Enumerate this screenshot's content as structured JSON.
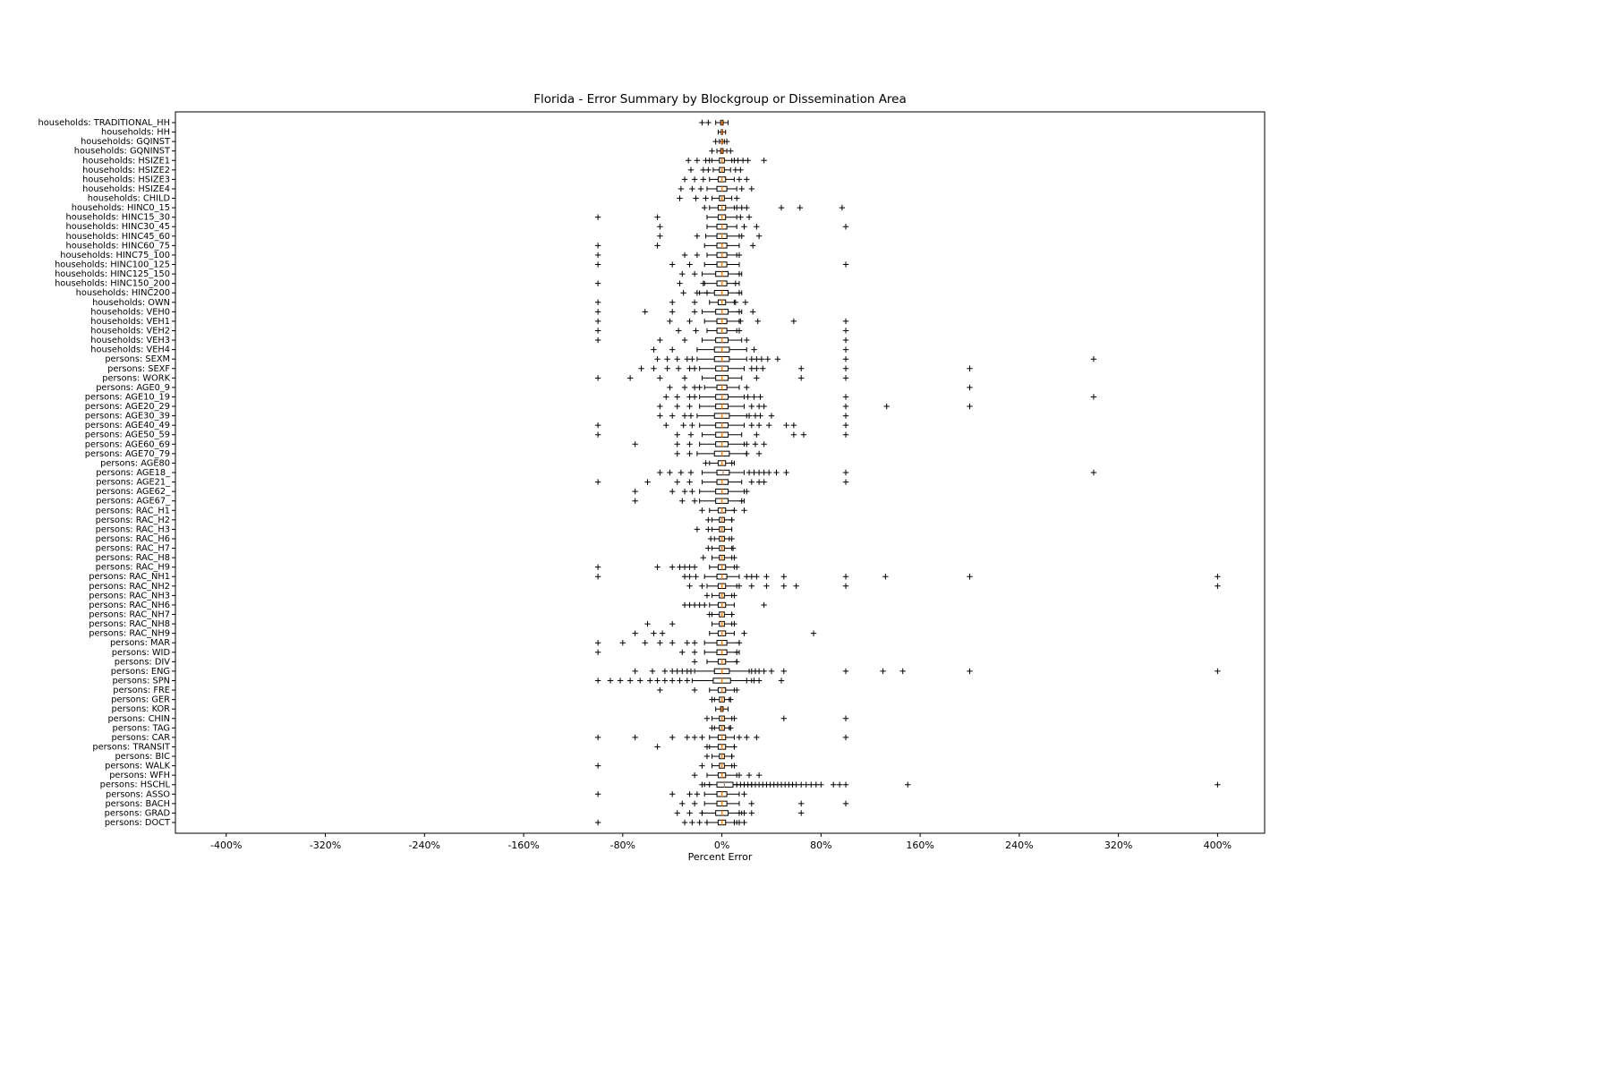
{
  "chart_data": {
    "type": "boxplot",
    "orientation": "horizontal",
    "title": "Florida - Error Summary by Blockgroup or Dissemination Area",
    "xlabel": "Percent Error",
    "xlim": [
      -441,
      438
    ],
    "xticks": [
      -400,
      -320,
      -240,
      -160,
      -80,
      0,
      80,
      160,
      240,
      320,
      400
    ],
    "xtick_labels": [
      "-400%",
      "-320%",
      "-240%",
      "-160%",
      "-80%",
      "0%",
      "80%",
      "160%",
      "240%",
      "320%",
      "400%"
    ],
    "grid": false,
    "legend": null,
    "box_color": "#000000",
    "median_color": "#ff7f0e",
    "marker": "+",
    "rows": [
      {
        "label": "households: TRADITIONAL_HH",
        "lo": -5,
        "q1": -1,
        "med": 0,
        "q3": 1,
        "hi": 5,
        "out": [
          -16,
          -11
        ]
      },
      {
        "label": "households: HH",
        "lo": -3,
        "q1": -0.5,
        "med": 0,
        "q3": 0.5,
        "hi": 3,
        "out": []
      },
      {
        "label": "households: GQINST",
        "lo": -2,
        "q1": -0.3,
        "med": 0,
        "q3": 0.3,
        "hi": 2,
        "out": [
          -5,
          4
        ]
      },
      {
        "label": "households: GQNINST",
        "lo": -4,
        "q1": -1,
        "med": 0,
        "q3": 1,
        "hi": 4,
        "out": [
          -8,
          7
        ]
      },
      {
        "label": "households: HSIZE1",
        "lo": -8,
        "q1": -2,
        "med": 0,
        "q3": 2,
        "hi": 8,
        "out": [
          -27,
          -20,
          -13,
          -10,
          10,
          13,
          17,
          21,
          34
        ]
      },
      {
        "label": "households: HSIZE2",
        "lo": -7,
        "q1": -2,
        "med": 0,
        "q3": 2,
        "hi": 7,
        "out": [
          -25,
          -15,
          -11,
          11,
          15
        ]
      },
      {
        "label": "households: HSIZE3",
        "lo": -10,
        "q1": -3,
        "med": 0,
        "q3": 3,
        "hi": 10,
        "out": [
          -30,
          -22,
          -15,
          14,
          20
        ]
      },
      {
        "label": "households: HSIZE4",
        "lo": -12,
        "q1": -4,
        "med": 0,
        "q3": 4,
        "hi": 12,
        "out": [
          -33,
          -24,
          -17,
          16,
          24
        ]
      },
      {
        "label": "households: CHILD",
        "lo": -8,
        "q1": -2,
        "med": 0,
        "q3": 2,
        "hi": 8,
        "out": [
          -34,
          -21,
          -13,
          12
        ]
      },
      {
        "label": "households: HINC0_15",
        "lo": -10,
        "q1": -3,
        "med": 0,
        "q3": 3,
        "hi": 10,
        "out": [
          -14,
          12,
          16,
          20,
          48,
          63,
          97
        ]
      },
      {
        "label": "households: HINC15_30",
        "lo": -12,
        "q1": -3,
        "med": 0,
        "q3": 3,
        "hi": 12,
        "out": [
          -100,
          -52,
          15,
          22
        ]
      },
      {
        "label": "households: HINC30_45",
        "lo": -12,
        "q1": -4,
        "med": 0,
        "q3": 4,
        "hi": 12,
        "out": [
          -50,
          18,
          28,
          100
        ]
      },
      {
        "label": "households: HINC45_60",
        "lo": -13,
        "q1": -4,
        "med": 0,
        "q3": 4,
        "hi": 14,
        "out": [
          -50,
          -20,
          16,
          30
        ]
      },
      {
        "label": "households: HINC60_75",
        "lo": -14,
        "q1": -4,
        "med": 0,
        "q3": 4,
        "hi": 14,
        "out": [
          -100,
          -52,
          25
        ]
      },
      {
        "label": "households: HINC75_100",
        "lo": -12,
        "q1": -4,
        "med": 0,
        "q3": 4,
        "hi": 12,
        "out": [
          -100,
          -30,
          -20,
          14
        ]
      },
      {
        "label": "households: HINC100_125",
        "lo": -14,
        "q1": -4,
        "med": 0,
        "q3": 4,
        "hi": 14,
        "out": [
          -100,
          -40,
          -26,
          100
        ]
      },
      {
        "label": "households: HINC125_150",
        "lo": -16,
        "q1": -5,
        "med": 0,
        "q3": 5,
        "hi": 16,
        "out": [
          -32,
          -22,
          14
        ]
      },
      {
        "label": "households: HINC150_200",
        "lo": -14,
        "q1": -4,
        "med": 0,
        "q3": 4,
        "hi": 14,
        "out": [
          -100,
          -34,
          -15,
          11
        ]
      },
      {
        "label": "households: HINC200",
        "lo": -18,
        "q1": -6,
        "med": 0,
        "q3": 5,
        "hi": 16,
        "out": [
          -31,
          -20,
          -12,
          14
        ]
      },
      {
        "label": "households: OWN",
        "lo": -10,
        "q1": -3,
        "med": 0,
        "q3": 3,
        "hi": 10,
        "out": [
          -100,
          -40,
          -22,
          11,
          19
        ]
      },
      {
        "label": "households: VEH0",
        "lo": -16,
        "q1": -5,
        "med": 0,
        "q3": 5,
        "hi": 16,
        "out": [
          -100,
          -62,
          -40,
          -22,
          14,
          25
        ]
      },
      {
        "label": "households: VEH1",
        "lo": -14,
        "q1": -4,
        "med": 0,
        "q3": 4,
        "hi": 14,
        "out": [
          -100,
          -42,
          -26,
          15,
          29,
          58,
          100
        ]
      },
      {
        "label": "households: VEH2",
        "lo": -12,
        "q1": -4,
        "med": 0,
        "q3": 4,
        "hi": 12,
        "out": [
          -100,
          -35,
          -21,
          14,
          100
        ]
      },
      {
        "label": "households: VEH3",
        "lo": -16,
        "q1": -5,
        "med": 0,
        "q3": 5,
        "hi": 16,
        "out": [
          -100,
          -50,
          -30,
          20,
          100
        ]
      },
      {
        "label": "households: VEH4",
        "lo": -20,
        "q1": -6,
        "med": 0,
        "q3": 6,
        "hi": 20,
        "out": [
          -55,
          -40,
          26,
          100
        ]
      },
      {
        "label": "persons: SEXM",
        "lo": -20,
        "q1": -6,
        "med": 0,
        "q3": 6,
        "hi": 20,
        "out": [
          -52,
          -44,
          -36,
          -28,
          -24,
          24,
          28,
          32,
          37,
          45,
          100,
          300
        ]
      },
      {
        "label": "persons: SEXF",
        "lo": -18,
        "q1": -5,
        "med": 0,
        "q3": 5,
        "hi": 18,
        "out": [
          -65,
          -55,
          -44,
          -35,
          -26,
          -22,
          24,
          28,
          33,
          64,
          100,
          200
        ]
      },
      {
        "label": "persons: WORK",
        "lo": -16,
        "q1": -5,
        "med": 0,
        "q3": 5,
        "hi": 16,
        "out": [
          -100,
          -74,
          -50,
          -30,
          28,
          64,
          100
        ]
      },
      {
        "label": "persons: AGE0_9",
        "lo": -14,
        "q1": -4,
        "med": 0,
        "q3": 4,
        "hi": 14,
        "out": [
          -42,
          -30,
          -22,
          -18,
          20,
          200
        ]
      },
      {
        "label": "persons: AGE10_19",
        "lo": -18,
        "q1": -5,
        "med": 0,
        "q3": 5,
        "hi": 18,
        "out": [
          -45,
          -36,
          -26,
          -22,
          21,
          26,
          31,
          100,
          300
        ]
      },
      {
        "label": "persons: AGE20_29",
        "lo": -18,
        "q1": -5,
        "med": 0,
        "q3": 5,
        "hi": 18,
        "out": [
          -50,
          -36,
          -26,
          24,
          30,
          34,
          100,
          133,
          200
        ]
      },
      {
        "label": "persons: AGE30_39",
        "lo": -20,
        "q1": -6,
        "med": 0,
        "q3": 6,
        "hi": 20,
        "out": [
          -50,
          -40,
          -30,
          -25,
          22,
          27,
          31,
          40,
          100
        ]
      },
      {
        "label": "persons: AGE40_49",
        "lo": -18,
        "q1": -5,
        "med": 0,
        "q3": 5,
        "hi": 18,
        "out": [
          -100,
          -45,
          -31,
          -24,
          24,
          30,
          38,
          52,
          58,
          100
        ]
      },
      {
        "label": "persons: AGE50_59",
        "lo": -16,
        "q1": -5,
        "med": 0,
        "q3": 5,
        "hi": 16,
        "out": [
          -100,
          -36,
          -25,
          28,
          58,
          66,
          100
        ]
      },
      {
        "label": "persons: AGE60_69",
        "lo": -18,
        "q1": -5,
        "med": 0,
        "q3": 5,
        "hi": 18,
        "out": [
          -70,
          -36,
          -26,
          20,
          27,
          34
        ]
      },
      {
        "label": "persons: AGE70_79",
        "lo": -20,
        "q1": -6,
        "med": 0,
        "q3": 6,
        "hi": 20,
        "out": [
          -36,
          -26,
          20,
          30
        ]
      },
      {
        "label": "persons: AGE80",
        "lo": -10,
        "q1": -3,
        "med": 0,
        "q3": 3,
        "hi": 10,
        "out": [
          -13,
          8
        ]
      },
      {
        "label": "persons: AGE18_",
        "lo": -16,
        "q1": -4,
        "med": 1,
        "q3": 6,
        "hi": 18,
        "out": [
          -50,
          -42,
          -33,
          -25,
          22,
          26,
          30,
          34,
          38,
          44,
          52,
          100,
          300
        ]
      },
      {
        "label": "persons: AGE21_",
        "lo": -16,
        "q1": -4,
        "med": 0,
        "q3": 5,
        "hi": 16,
        "out": [
          -100,
          -60,
          -36,
          -26,
          24,
          30,
          34,
          100
        ]
      },
      {
        "label": "persons: AGE62_",
        "lo": -18,
        "q1": -5,
        "med": 0,
        "q3": 5,
        "hi": 18,
        "out": [
          -70,
          -40,
          -30,
          -24,
          20
        ]
      },
      {
        "label": "persons: AGE67_",
        "lo": -18,
        "q1": -5,
        "med": 0,
        "q3": 5,
        "hi": 18,
        "out": [
          -70,
          -32,
          -22,
          16
        ]
      },
      {
        "label": "persons: RAC_H1",
        "lo": -10,
        "q1": -3,
        "med": 0,
        "q3": 3,
        "hi": 10,
        "out": [
          -16,
          10,
          18
        ]
      },
      {
        "label": "persons: RAC_H2",
        "lo": -8,
        "q1": -2,
        "med": 0,
        "q3": 2,
        "hi": 8,
        "out": [
          -11,
          8
        ]
      },
      {
        "label": "persons: RAC_H3",
        "lo": -8,
        "q1": -2,
        "med": 0,
        "q3": 2,
        "hi": 8,
        "out": [
          -20,
          -11
        ]
      },
      {
        "label": "persons: RAC_H6",
        "lo": -6,
        "q1": -2,
        "med": 0,
        "q3": 2,
        "hi": 6,
        "out": [
          -9,
          8
        ]
      },
      {
        "label": "persons: RAC_H7",
        "lo": -8,
        "q1": -2,
        "med": 0,
        "q3": 2,
        "hi": 8,
        "out": [
          -11,
          9
        ]
      },
      {
        "label": "persons: RAC_H8",
        "lo": -8,
        "q1": -2,
        "med": 0,
        "q3": 2,
        "hi": 8,
        "out": [
          -15,
          10
        ]
      },
      {
        "label": "persons: RAC_H9",
        "lo": -10,
        "q1": -3,
        "med": 0,
        "q3": 3,
        "hi": 10,
        "out": [
          -100,
          -52,
          -40,
          -34,
          -30,
          -26,
          -22,
          12
        ]
      },
      {
        "label": "persons: RAC_NH1",
        "lo": -14,
        "q1": -4,
        "med": 0,
        "q3": 4,
        "hi": 14,
        "out": [
          -100,
          -30,
          -26,
          -21,
          20,
          24,
          28,
          36,
          50,
          100,
          132,
          200,
          400
        ]
      },
      {
        "label": "persons: RAC_NH2",
        "lo": -12,
        "q1": -3,
        "med": 0,
        "q3": 3,
        "hi": 12,
        "out": [
          -26,
          -16,
          14,
          24,
          36,
          50,
          60,
          100,
          400
        ]
      },
      {
        "label": "persons: RAC_NH3",
        "lo": -8,
        "q1": -2,
        "med": 0,
        "q3": 2,
        "hi": 8,
        "out": [
          -12,
          10
        ]
      },
      {
        "label": "persons: RAC_NH6",
        "lo": -10,
        "q1": -3,
        "med": 0,
        "q3": 3,
        "hi": 10,
        "out": [
          -30,
          -26,
          -22,
          -18,
          -14,
          34
        ]
      },
      {
        "label": "persons: RAC_NH7",
        "lo": -8,
        "q1": -2,
        "med": 0,
        "q3": 2,
        "hi": 8,
        "out": [
          -10,
          8
        ]
      },
      {
        "label": "persons: RAC_NH8",
        "lo": -8,
        "q1": -2,
        "med": 0,
        "q3": 2,
        "hi": 8,
        "out": [
          -60,
          -40,
          10
        ]
      },
      {
        "label": "persons: RAC_NH9",
        "lo": -10,
        "q1": -3,
        "med": 0,
        "q3": 3,
        "hi": 10,
        "out": [
          -70,
          -55,
          -48,
          18,
          74
        ]
      },
      {
        "label": "persons: MAR",
        "lo": -14,
        "q1": -4,
        "med": 0,
        "q3": 4,
        "hi": 14,
        "out": [
          -100,
          -80,
          -62,
          -50,
          -40,
          -28,
          -22,
          14
        ]
      },
      {
        "label": "persons: WID",
        "lo": -14,
        "q1": -4,
        "med": 0,
        "q3": 4,
        "hi": 14,
        "out": [
          -100,
          -32,
          -22,
          12
        ]
      },
      {
        "label": "persons: DIV",
        "lo": -12,
        "q1": -3,
        "med": 0,
        "q3": 3,
        "hi": 12,
        "out": [
          -22,
          12
        ]
      },
      {
        "label": "persons: ENG",
        "lo": -22,
        "q1": -6,
        "med": 0,
        "q3": 6,
        "hi": 22,
        "out": [
          -70,
          -56,
          -46,
          -40,
          -36,
          -32,
          -28,
          -25,
          24,
          27,
          30,
          34,
          40,
          50,
          100,
          130,
          146,
          200,
          400
        ]
      },
      {
        "label": "persons: SPN",
        "lo": -24,
        "q1": -7,
        "med": 0,
        "q3": 7,
        "hi": 24,
        "out": [
          -100,
          -90,
          -82,
          -74,
          -66,
          -58,
          -52,
          -46,
          -40,
          -34,
          -28,
          20,
          26,
          30,
          48
        ]
      },
      {
        "label": "persons: FRE",
        "lo": -10,
        "q1": -3,
        "med": 0,
        "q3": 3,
        "hi": 10,
        "out": [
          -50,
          -22,
          12
        ]
      },
      {
        "label": "persons: GER",
        "lo": -6,
        "q1": -2,
        "med": 0,
        "q3": 2,
        "hi": 6,
        "out": [
          -8,
          7
        ]
      },
      {
        "label": "persons: KOR",
        "lo": -5,
        "q1": -1,
        "med": 0,
        "q3": 1,
        "hi": 5,
        "out": []
      },
      {
        "label": "persons: CHIN",
        "lo": -8,
        "q1": -2,
        "med": 0,
        "q3": 2,
        "hi": 8,
        "out": [
          -12,
          10,
          50,
          100
        ]
      },
      {
        "label": "persons: TAG",
        "lo": -6,
        "q1": -2,
        "med": 0,
        "q3": 2,
        "hi": 6,
        "out": [
          -8,
          7
        ]
      },
      {
        "label": "persons: CAR",
        "lo": -10,
        "q1": -3,
        "med": 0,
        "q3": 3,
        "hi": 10,
        "out": [
          -100,
          -70,
          -40,
          -28,
          -22,
          -16,
          14,
          20,
          28,
          100
        ]
      },
      {
        "label": "persons: TRANSIT",
        "lo": -10,
        "q1": -3,
        "med": 0,
        "q3": 3,
        "hi": 10,
        "out": [
          -52,
          -12,
          10
        ]
      },
      {
        "label": "persons: BIC",
        "lo": -8,
        "q1": -2,
        "med": 0,
        "q3": 2,
        "hi": 8,
        "out": [
          -12,
          8
        ]
      },
      {
        "label": "persons: WALK",
        "lo": -8,
        "q1": -2,
        "med": 0,
        "q3": 2,
        "hi": 8,
        "out": [
          -100,
          -16,
          10
        ]
      },
      {
        "label": "persons: WFH",
        "lo": -12,
        "q1": -3,
        "med": 0,
        "q3": 3,
        "hi": 12,
        "out": [
          -22,
          14,
          22,
          30
        ]
      },
      {
        "label": "persons: HSCHL",
        "lo": -14,
        "q1": -4,
        "med": 2,
        "q3": 9,
        "hi": 24,
        "out": [
          -16,
          -10,
          12,
          15,
          18,
          21,
          24,
          27,
          30,
          33,
          36,
          39,
          42,
          45,
          48,
          51,
          54,
          57,
          60,
          64,
          68,
          72,
          76,
          80,
          90,
          95,
          100,
          150,
          400
        ]
      },
      {
        "label": "persons: ASSO",
        "lo": -14,
        "q1": -4,
        "med": 0,
        "q3": 4,
        "hi": 14,
        "out": [
          -100,
          -40,
          -26,
          -20,
          18
        ]
      },
      {
        "label": "persons: BACH",
        "lo": -14,
        "q1": -4,
        "med": 0,
        "q3": 4,
        "hi": 14,
        "out": [
          -32,
          -22,
          24,
          64,
          100
        ]
      },
      {
        "label": "persons: GRAD",
        "lo": -16,
        "q1": -5,
        "med": 0,
        "q3": 5,
        "hi": 16,
        "out": [
          -36,
          -26,
          -16,
          14,
          18,
          24,
          64
        ]
      },
      {
        "label": "persons: DOCT",
        "lo": -12,
        "q1": -3,
        "med": 0,
        "q3": 3,
        "hi": 12,
        "out": [
          -100,
          -30,
          -24,
          -18,
          -12,
          10,
          14,
          18
        ]
      }
    ]
  }
}
